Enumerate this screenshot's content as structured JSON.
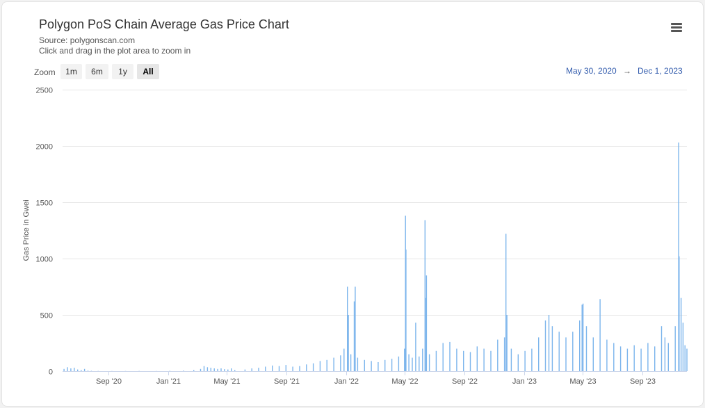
{
  "title": "Polygon PoS Chain Average Gas Price Chart",
  "subtitle_source": "Source: polygonscan.com",
  "subtitle_hint": "Click and drag in the plot area to zoom in",
  "zoom": {
    "label": "Zoom",
    "buttons": [
      "1m",
      "6m",
      "1y",
      "All"
    ],
    "active": "All"
  },
  "range": {
    "from": "May 30, 2020",
    "arrow": "→",
    "to": "Dec 1, 2023"
  },
  "menu_icon": "hamburger-menu-icon",
  "colors": {
    "bar": "#7cb5ec",
    "grid": "#e6e6e6",
    "range_text": "#335cad"
  },
  "chart_data": {
    "type": "bar",
    "title": "Polygon PoS Chain Average Gas Price Chart",
    "ylabel": "Gas Price in Gwei",
    "xlabel": "",
    "ylim": [
      0,
      2500
    ],
    "yticks": [
      0,
      500,
      1000,
      1500,
      2000,
      2500
    ],
    "xlim": [
      "2020-05-30",
      "2023-12-01"
    ],
    "xticks": [
      {
        "date": "2020-09-01",
        "label": "Sep '20"
      },
      {
        "date": "2021-01-01",
        "label": "Jan '21"
      },
      {
        "date": "2021-05-01",
        "label": "May '21"
      },
      {
        "date": "2021-09-01",
        "label": "Sep '21"
      },
      {
        "date": "2022-01-01",
        "label": "Jan '22"
      },
      {
        "date": "2022-05-01",
        "label": "May '22"
      },
      {
        "date": "2022-09-01",
        "label": "Sep '22"
      },
      {
        "date": "2023-01-01",
        "label": "Jan '23"
      },
      {
        "date": "2023-05-01",
        "label": "May '23"
      },
      {
        "date": "2023-09-01",
        "label": "Sep '23"
      }
    ],
    "grid": true,
    "legend": "none",
    "series": [
      {
        "points": [
          [
            "2020-06-01",
            20
          ],
          [
            "2020-06-08",
            35
          ],
          [
            "2020-06-15",
            25
          ],
          [
            "2020-06-22",
            30
          ],
          [
            "2020-06-29",
            15
          ],
          [
            "2020-07-06",
            10
          ],
          [
            "2020-07-13",
            20
          ],
          [
            "2020-07-20",
            5
          ],
          [
            "2020-07-27",
            3
          ],
          [
            "2020-08-10",
            2
          ],
          [
            "2020-09-07",
            1
          ],
          [
            "2020-10-05",
            1
          ],
          [
            "2020-11-02",
            2
          ],
          [
            "2020-12-07",
            1
          ],
          [
            "2021-01-04",
            3
          ],
          [
            "2021-02-01",
            5
          ],
          [
            "2021-02-22",
            10
          ],
          [
            "2021-03-08",
            20
          ],
          [
            "2021-03-15",
            45
          ],
          [
            "2021-03-22",
            35
          ],
          [
            "2021-03-29",
            30
          ],
          [
            "2021-04-05",
            25
          ],
          [
            "2021-04-12",
            20
          ],
          [
            "2021-04-19",
            25
          ],
          [
            "2021-04-26",
            18
          ],
          [
            "2021-05-03",
            15
          ],
          [
            "2021-05-10",
            25
          ],
          [
            "2021-05-17",
            10
          ],
          [
            "2021-06-07",
            15
          ],
          [
            "2021-06-21",
            25
          ],
          [
            "2021-07-05",
            30
          ],
          [
            "2021-07-19",
            40
          ],
          [
            "2021-08-02",
            50
          ],
          [
            "2021-08-16",
            45
          ],
          [
            "2021-08-30",
            55
          ],
          [
            "2021-09-13",
            40
          ],
          [
            "2021-09-27",
            45
          ],
          [
            "2021-10-11",
            60
          ],
          [
            "2021-10-25",
            70
          ],
          [
            "2021-11-08",
            90
          ],
          [
            "2021-11-22",
            100
          ],
          [
            "2021-12-06",
            120
          ],
          [
            "2021-12-20",
            140
          ],
          [
            "2021-12-27",
            200
          ],
          [
            "2022-01-03",
            750
          ],
          [
            "2022-01-05",
            500
          ],
          [
            "2022-01-10",
            150
          ],
          [
            "2022-01-17",
            620
          ],
          [
            "2022-01-19",
            750
          ],
          [
            "2022-01-24",
            120
          ],
          [
            "2022-02-07",
            100
          ],
          [
            "2022-02-21",
            90
          ],
          [
            "2022-03-07",
            80
          ],
          [
            "2022-03-21",
            100
          ],
          [
            "2022-04-04",
            110
          ],
          [
            "2022-04-18",
            130
          ],
          [
            "2022-04-30",
            200
          ],
          [
            "2022-05-02",
            1380
          ],
          [
            "2022-05-03",
            1080
          ],
          [
            "2022-05-09",
            150
          ],
          [
            "2022-05-16",
            120
          ],
          [
            "2022-05-23",
            430
          ],
          [
            "2022-05-30",
            130
          ],
          [
            "2022-06-06",
            200
          ],
          [
            "2022-06-11",
            1340
          ],
          [
            "2022-06-12",
            650
          ],
          [
            "2022-06-14",
            850
          ],
          [
            "2022-06-20",
            150
          ],
          [
            "2022-07-04",
            180
          ],
          [
            "2022-07-18",
            250
          ],
          [
            "2022-08-01",
            260
          ],
          [
            "2022-08-15",
            200
          ],
          [
            "2022-08-29",
            180
          ],
          [
            "2022-09-12",
            170
          ],
          [
            "2022-09-26",
            220
          ],
          [
            "2022-10-10",
            200
          ],
          [
            "2022-10-24",
            180
          ],
          [
            "2022-11-07",
            280
          ],
          [
            "2022-11-21",
            300
          ],
          [
            "2022-11-24",
            1220
          ],
          [
            "2022-11-26",
            500
          ],
          [
            "2022-12-05",
            200
          ],
          [
            "2022-12-19",
            150
          ],
          [
            "2023-01-02",
            180
          ],
          [
            "2023-01-16",
            200
          ],
          [
            "2023-01-30",
            300
          ],
          [
            "2023-02-13",
            450
          ],
          [
            "2023-02-20",
            500
          ],
          [
            "2023-02-27",
            400
          ],
          [
            "2023-03-13",
            350
          ],
          [
            "2023-03-27",
            300
          ],
          [
            "2023-04-10",
            350
          ],
          [
            "2023-04-24",
            450
          ],
          [
            "2023-04-29",
            590
          ],
          [
            "2023-05-01",
            600
          ],
          [
            "2023-05-08",
            400
          ],
          [
            "2023-05-22",
            300
          ],
          [
            "2023-06-05",
            640
          ],
          [
            "2023-06-19",
            280
          ],
          [
            "2023-07-03",
            250
          ],
          [
            "2023-07-17",
            220
          ],
          [
            "2023-07-31",
            200
          ],
          [
            "2023-08-14",
            230
          ],
          [
            "2023-08-28",
            200
          ],
          [
            "2023-09-11",
            250
          ],
          [
            "2023-09-25",
            220
          ],
          [
            "2023-10-09",
            400
          ],
          [
            "2023-10-16",
            300
          ],
          [
            "2023-10-23",
            250
          ],
          [
            "2023-11-06",
            400
          ],
          [
            "2023-11-13",
            2030
          ],
          [
            "2023-11-14",
            1020
          ],
          [
            "2023-11-18",
            650
          ],
          [
            "2023-11-22",
            430
          ],
          [
            "2023-11-26",
            230
          ],
          [
            "2023-11-30",
            200
          ]
        ]
      }
    ]
  }
}
